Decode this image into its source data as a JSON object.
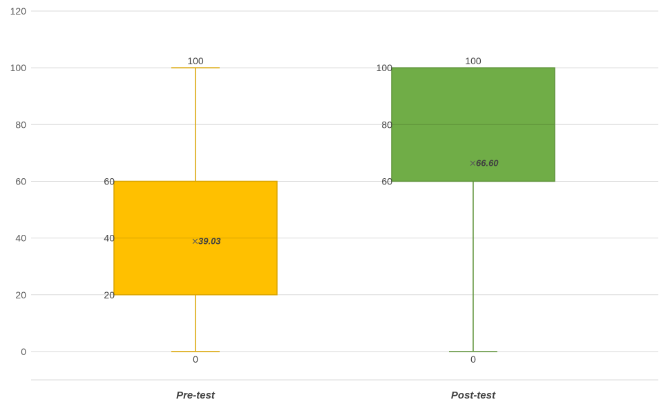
{
  "chart_data": {
    "type": "box",
    "title": "",
    "xlabel": "",
    "ylabel": "",
    "ylim": [
      -10,
      120
    ],
    "yticks": [
      0,
      20,
      40,
      60,
      80,
      100,
      120
    ],
    "grid": true,
    "legend": "none",
    "categories": [
      "Pre-test",
      "Post-test"
    ],
    "series": [
      {
        "category": "Pre-test",
        "min": 0,
        "q1": 20,
        "median": 40,
        "q3": 60,
        "max": 100,
        "mean": 39.03,
        "mean_label": "39.03",
        "labels": {
          "min": "0",
          "q1": "20",
          "median": "40",
          "q3": "60",
          "max": "100"
        },
        "color": "#FFC000",
        "edge_color": "#D9A400"
      },
      {
        "category": "Post-test",
        "min": 0,
        "q1": 60,
        "median": 80,
        "q3": 100,
        "max": 100,
        "mean": 66.6,
        "mean_label": "66.60",
        "labels": {
          "min": "0",
          "q1": "60",
          "median": "80",
          "q3": "100",
          "max": "100"
        },
        "color": "#70AD47",
        "edge_color": "#5E9239"
      }
    ]
  }
}
